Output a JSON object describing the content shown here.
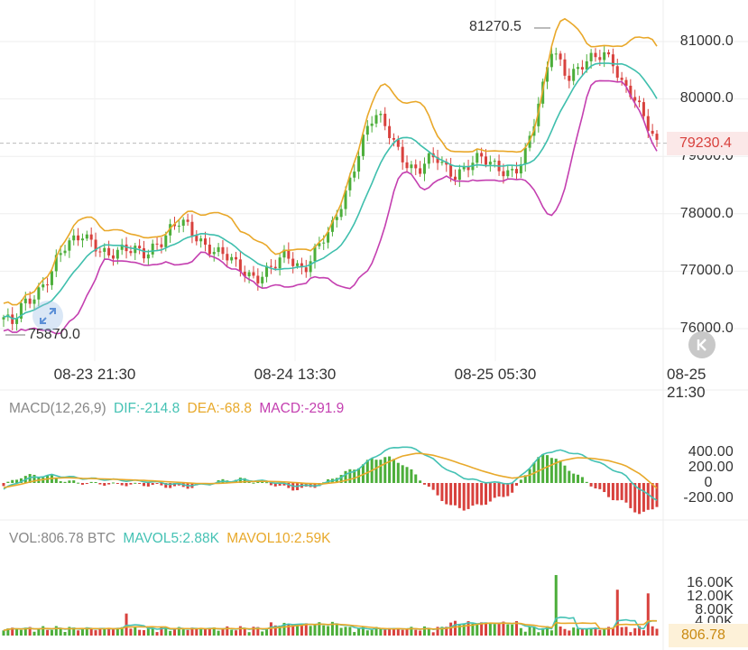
{
  "colors": {
    "up": "#4cae3a",
    "down": "#d8413d",
    "bb_upper": "#e9a82a",
    "bb_mid": "#3fbfad",
    "bb_lower": "#c43fb0",
    "dif": "#45c2b4",
    "dea": "#e8a92b",
    "mavol5": "#45c2b4",
    "mavol10": "#e8a92b"
  },
  "main": {
    "y_ticks": [
      "81000.0",
      "80000.0",
      "79000.0",
      "78000.0",
      "77000.0",
      "76000.0"
    ],
    "current_price": "79230.4",
    "high_label": "81270.5",
    "low_label": "75870.0"
  },
  "x_ticks": [
    "08-23 21:30",
    "08-24 13:30",
    "08-25 05:30",
    "08-25 21:30"
  ],
  "macd": {
    "name": "MACD(12,26,9)",
    "dif": "DIF:-214.8",
    "dea": "DEA:-68.8",
    "macd": "MACD:-291.9",
    "y_ticks": [
      "400.00",
      "200.00",
      "0",
      "-200.00"
    ]
  },
  "vol": {
    "name": "VOL:806.78 BTC",
    "mavol5": "MAVOL5:2.88K",
    "mavol10": "MAVOL10:2.59K",
    "y_ticks": [
      "16.00K",
      "12.00K",
      "8.00K",
      "4.00K"
    ],
    "current": "806.78"
  },
  "icons": {
    "reset": "collapse-left-icon",
    "zoom": "expand-icon"
  },
  "chart_data": {
    "type": "candlestick",
    "x_axis": [
      "08-23 21:30",
      "08-24 13:30",
      "08-25 05:30",
      "08-25 21:30"
    ],
    "ylim": [
      75600,
      81300
    ],
    "close_path": [
      76200,
      76050,
      76350,
      76500,
      76700,
      76900,
      77200,
      77400,
      77500,
      77650,
      77550,
      77400,
      77250,
      77300,
      77350,
      77400,
      77350,
      77450,
      77500,
      77700,
      77850,
      77800,
      77600,
      77450,
      77300,
      77250,
      77150,
      77050,
      76950,
      76900,
      77000,
      77100,
      77300,
      77150,
      77050,
      77300,
      77500,
      77650,
      78050,
      78500,
      79000,
      79450,
      79700,
      79550,
      79300,
      79050,
      78850,
      78750,
      78900,
      78950,
      78800,
      78700,
      78800,
      78900,
      78950,
      78850,
      78800,
      78750,
      78800,
      79000,
      79500,
      80100,
      80900,
      80700,
      80400,
      80500,
      80600,
      80700,
      80800,
      80700,
      80300,
      80100,
      79800,
      79500,
      79230
    ],
    "macd_dif": [
      -80,
      20,
      80,
      100,
      80,
      60,
      50,
      40,
      30,
      20,
      0,
      -20,
      -30,
      -10,
      20,
      40,
      30,
      10,
      -30,
      -40,
      -20,
      60,
      150,
      300,
      430,
      480,
      430,
      300,
      150,
      60,
      20,
      0,
      0,
      200,
      400,
      420,
      380,
      300,
      200,
      100,
      -100,
      -215
    ],
    "macd_dea": [
      -60,
      -20,
      30,
      60,
      70,
      60,
      55,
      48,
      40,
      32,
      20,
      8,
      -5,
      -8,
      0,
      15,
      22,
      20,
      10,
      -5,
      -12,
      10,
      60,
      150,
      260,
      350,
      390,
      360,
      300,
      230,
      160,
      100,
      60,
      100,
      200,
      290,
      330,
      320,
      290,
      230,
      110,
      -69
    ],
    "vol_spikes_k": [
      16.5,
      6.0,
      12.5,
      11.5
    ]
  }
}
